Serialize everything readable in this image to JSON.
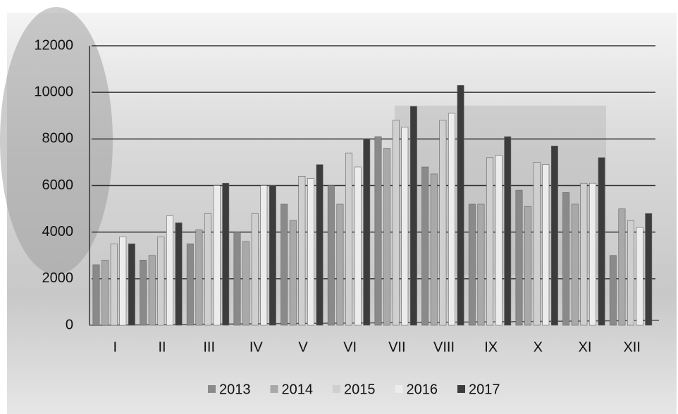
{
  "chart_data": {
    "type": "bar",
    "categories": [
      "I",
      "II",
      "III",
      "IV",
      "V",
      "VI",
      "VII",
      "VIII",
      "IX",
      "X",
      "XI",
      "XII"
    ],
    "series": [
      {
        "name": "2013",
        "color": "#8a8a8a",
        "values": [
          2600,
          2800,
          3500,
          4000,
          5200,
          6000,
          8100,
          6800,
          5200,
          5800,
          5700,
          3000
        ]
      },
      {
        "name": "2014",
        "color": "#a9a9a9",
        "values": [
          2800,
          3000,
          4100,
          3600,
          4500,
          5200,
          7600,
          6500,
          5200,
          5100,
          5200,
          5000
        ]
      },
      {
        "name": "2015",
        "color": "#cfcfcf",
        "values": [
          3500,
          3800,
          4800,
          4800,
          6400,
          7400,
          8800,
          8800,
          7200,
          7000,
          6100,
          4500
        ]
      },
      {
        "name": "2016",
        "color": "#ececec",
        "values": [
          3800,
          4700,
          6000,
          6000,
          6300,
          6800,
          8500,
          9100,
          7300,
          6900,
          6100,
          4200
        ]
      },
      {
        "name": "2017",
        "color": "#3c3c3c",
        "values": [
          3500,
          4400,
          6100,
          6000,
          6900,
          8000,
          9400,
          10300,
          8100,
          7700,
          7200,
          4800
        ]
      }
    ],
    "ylim": [
      0,
      12000
    ],
    "yticks": [
      0,
      2000,
      4000,
      6000,
      8000,
      10000,
      12000
    ],
    "grid": true
  }
}
